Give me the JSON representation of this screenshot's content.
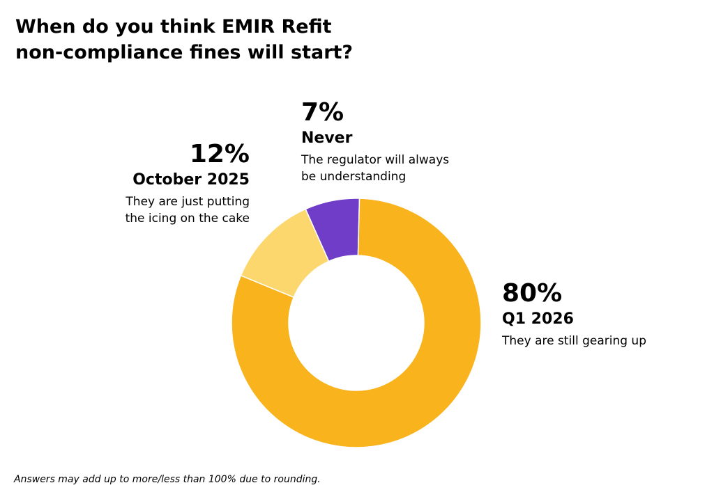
{
  "title": {
    "line1": "When do you think EMIR Refit",
    "line2": "non-compliance fines will start?"
  },
  "chart_data": {
    "type": "pie",
    "variant": "donut",
    "title": "When do you think EMIR Refit non-compliance fines will start?",
    "slices": [
      {
        "id": "never",
        "pct_label": "7%",
        "label": "Never",
        "description": "The regulator will always\nbe understanding",
        "value": 7,
        "color": "#6f3dc8"
      },
      {
        "id": "q1",
        "pct_label": "80%",
        "label": "Q1 2026",
        "description": "They are still gearing up",
        "value": 80,
        "color": "#f8b31d"
      },
      {
        "id": "oct",
        "pct_label": "12%",
        "label": "October 2025",
        "description": "They are just putting\nthe icing on the cake",
        "value": 12,
        "color": "#fcd76e"
      }
    ],
    "start_angle_deg": -24,
    "direction": "clockwise"
  },
  "footnote": "Answers may add up to more/less than 100% due to rounding."
}
